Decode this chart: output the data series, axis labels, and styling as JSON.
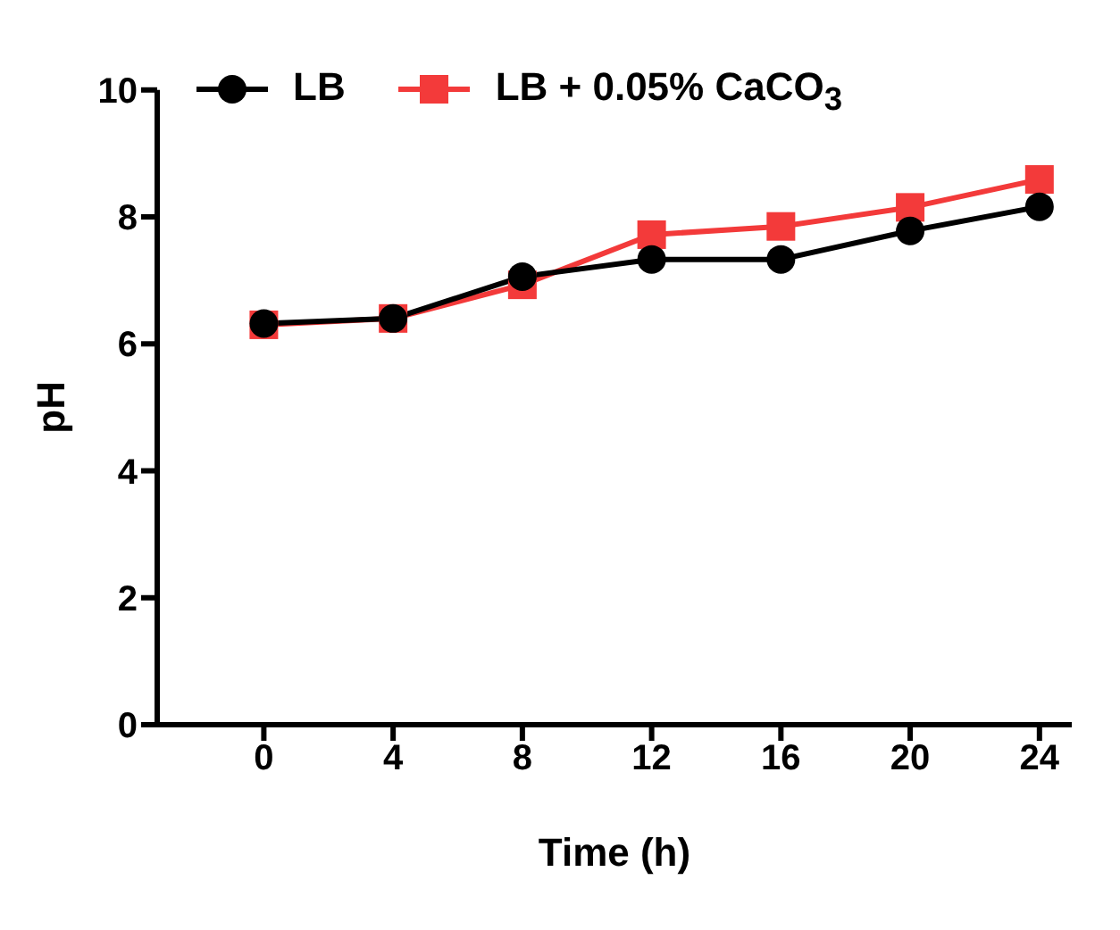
{
  "chart_data": {
    "type": "line",
    "xlabel": "Time (h)",
    "ylabel": "pH",
    "x": [
      0,
      4,
      8,
      12,
      16,
      20,
      24
    ],
    "series": [
      {
        "name": "LB",
        "color": "#000000",
        "marker": "circle",
        "values": [
          6.32,
          6.4,
          7.06,
          7.33,
          7.33,
          7.78,
          8.16
        ]
      },
      {
        "name": "LB + 0.05% CaCO$_{3}$",
        "color": "#f33a3a",
        "marker": "square",
        "values": [
          6.3,
          6.4,
          6.93,
          7.72,
          7.85,
          8.15,
          8.59
        ]
      }
    ],
    "xlim": [
      -3.3,
      25
    ],
    "xticks": [
      0,
      4,
      8,
      12,
      16,
      20,
      24
    ],
    "ylim": [
      0,
      10
    ],
    "yticks": [
      0,
      2,
      4,
      6,
      8,
      10
    ],
    "grid": false,
    "legend": "top left",
    "line_style": "solid"
  }
}
